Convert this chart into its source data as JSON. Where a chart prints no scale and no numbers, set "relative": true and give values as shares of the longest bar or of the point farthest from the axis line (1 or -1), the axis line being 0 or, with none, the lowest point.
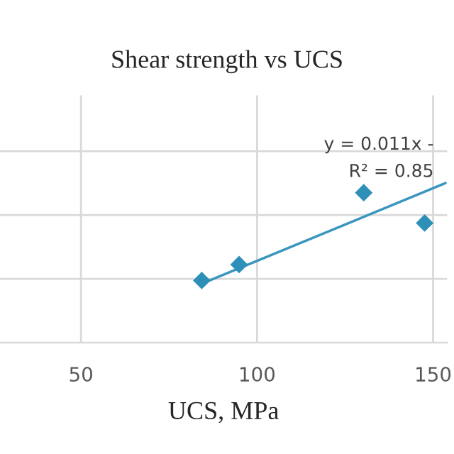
{
  "chart_data": {
    "type": "scatter",
    "title": "Shear strength vs UCS",
    "xlabel": "UCS, MPa",
    "relative": true,
    "xlim": [
      27,
      154
    ],
    "xticks": [
      50,
      100,
      150
    ],
    "grid": true,
    "marker": "diamond",
    "annotations": [
      "y = 0.011x -",
      "R² = 0.85"
    ],
    "series": [
      {
        "color": "#2e8fb8",
        "x": [
          84.3,
          94.9,
          130.3,
          147.6
        ],
        "values": [
          0.39,
          0.49,
          0.94,
          0.75
        ]
      },
      {
        "type": "line",
        "marker": "none",
        "color": "#3a95bf",
        "x": [
          84.3,
          153.5
        ],
        "values": [
          0.37,
          1
        ]
      }
    ]
  }
}
